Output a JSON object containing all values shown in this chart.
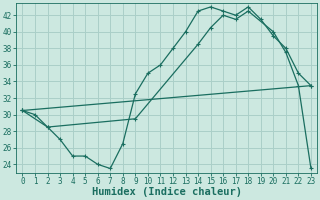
{
  "xlabel": "Humidex (Indice chaleur)",
  "bg_color": "#cce8e0",
  "grid_color": "#aacfc8",
  "line_color": "#1a6e60",
  "xlim": [
    -0.5,
    23.5
  ],
  "ylim": [
    23.0,
    43.5
  ],
  "xticks": [
    0,
    1,
    2,
    3,
    4,
    5,
    6,
    7,
    8,
    9,
    10,
    11,
    12,
    13,
    14,
    15,
    16,
    17,
    18,
    19,
    20,
    21,
    22,
    23
  ],
  "yticks": [
    24,
    26,
    28,
    30,
    32,
    34,
    36,
    38,
    40,
    42
  ],
  "line1_x": [
    0,
    1,
    2,
    3,
    4,
    5,
    6,
    7,
    8,
    9,
    10,
    11,
    12,
    13,
    14,
    15,
    16,
    17,
    18,
    19,
    20,
    21,
    22,
    23
  ],
  "line1_y": [
    30.5,
    30.0,
    28.5,
    27.0,
    25.0,
    25.0,
    24.0,
    23.5,
    26.5,
    32.5,
    35.0,
    36.0,
    38.0,
    40.0,
    42.5,
    43.0,
    42.5,
    42.0,
    43.0,
    41.5,
    39.5,
    38.0,
    35.0,
    33.5
  ],
  "line2_x": [
    0,
    2,
    9,
    14,
    15,
    16,
    17,
    18,
    20,
    21,
    22,
    23
  ],
  "line2_y": [
    30.5,
    28.5,
    29.5,
    38.5,
    40.5,
    42.0,
    41.5,
    42.5,
    40.0,
    37.5,
    33.5,
    23.5
  ],
  "line3_x": [
    0,
    23
  ],
  "line3_y": [
    30.5,
    33.5
  ],
  "tick_fontsize": 5.5,
  "xlabel_fontsize": 7.5
}
